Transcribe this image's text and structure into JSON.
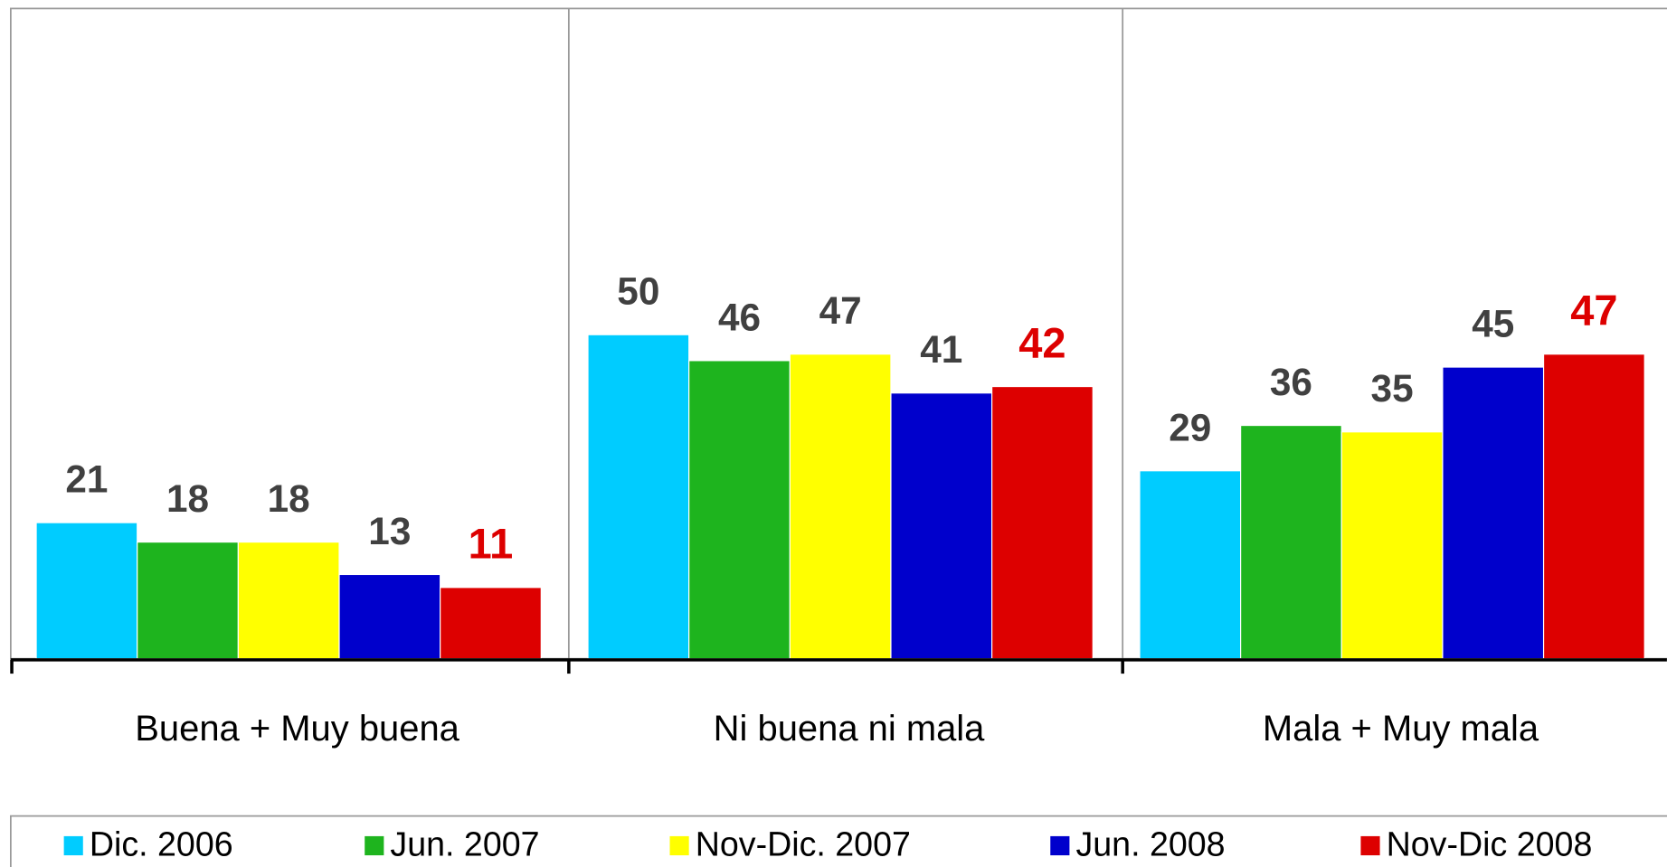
{
  "chart_data": {
    "type": "bar",
    "categories": [
      "Buena + Muy buena",
      "Ni buena ni mala",
      "Mala + Muy mala"
    ],
    "series": [
      {
        "name": "Dic. 2006",
        "color": "#00ccff",
        "label_color": "#404040",
        "values": [
          21,
          50,
          29
        ]
      },
      {
        "name": "Jun. 2007",
        "color": "#1eb41e",
        "label_color": "#404040",
        "values": [
          18,
          46,
          36
        ]
      },
      {
        "name": "Nov-Dic. 2007",
        "color": "#ffff00",
        "label_color": "#404040",
        "values": [
          18,
          47,
          35
        ]
      },
      {
        "name": "Jun. 2008",
        "color": "#0000cc",
        "label_color": "#404040",
        "values": [
          13,
          41,
          45
        ]
      },
      {
        "name": "Nov-Dic 2008",
        "color": "#dd0000",
        "label_color": "#dd0000",
        "values": [
          11,
          42,
          47
        ]
      }
    ],
    "ylim": [
      0,
      100
    ],
    "legend": "bottom"
  }
}
